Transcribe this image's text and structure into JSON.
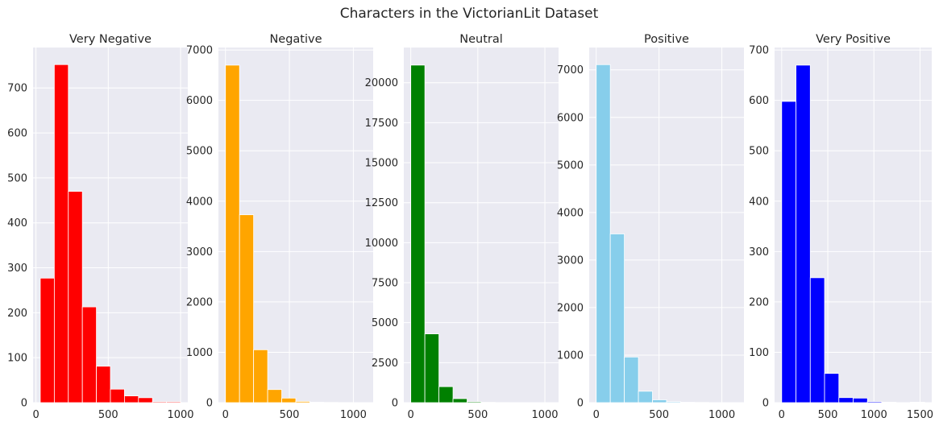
{
  "title": "Characters in the VictorianLit Dataset",
  "chart_data": [
    {
      "type": "bar",
      "title": "Very Negative",
      "color": "#ff0000",
      "bin_edges": [
        30,
        127,
        224,
        321,
        418,
        515,
        612,
        709,
        806,
        903,
        1000
      ],
      "counts": [
        277,
        752,
        470,
        213,
        81,
        30,
        15,
        11,
        2,
        2
      ],
      "xlim": [
        -20,
        1050
      ],
      "ylim": [
        0,
        790
      ],
      "xticks": [
        0,
        500,
        1000
      ],
      "yticks": [
        0,
        100,
        200,
        300,
        400,
        500,
        600,
        700
      ],
      "xtick_labels": [
        "0",
        "500",
        "1000"
      ],
      "ytick_labels": [
        "0",
        "100",
        "200",
        "300",
        "400",
        "500",
        "600",
        "700"
      ],
      "grid": true
    },
    {
      "type": "bar",
      "title": "Negative",
      "color": "#ffa500",
      "bin_edges": [
        0,
        110,
        220,
        330,
        440,
        550,
        660,
        770,
        880,
        990,
        1100
      ],
      "counts": [
        6700,
        3730,
        1050,
        260,
        90,
        25,
        8,
        4,
        2,
        1
      ],
      "xlim": [
        -55,
        1155
      ],
      "ylim": [
        0,
        7050
      ],
      "xticks": [
        0,
        500,
        1000
      ],
      "yticks": [
        0,
        1000,
        2000,
        3000,
        4000,
        5000,
        6000,
        7000
      ],
      "xtick_labels": [
        "0",
        "500",
        "1000"
      ],
      "ytick_labels": [
        "0",
        "1000",
        "2000",
        "3000",
        "4000",
        "5000",
        "6000",
        "7000"
      ],
      "grid": true
    },
    {
      "type": "bar",
      "title": "Neutral",
      "color": "#008000",
      "bin_edges": [
        0,
        105,
        210,
        315,
        420,
        525,
        630,
        735,
        840,
        945,
        1050
      ],
      "counts": [
        21100,
        4300,
        1000,
        250,
        60,
        20,
        8,
        4,
        2,
        1
      ],
      "xlim": [
        -52,
        1102
      ],
      "ylim": [
        0,
        22200
      ],
      "xticks": [
        0,
        500,
        1000
      ],
      "yticks": [
        0,
        2500,
        5000,
        7500,
        10000,
        12500,
        15000,
        17500,
        20000
      ],
      "xtick_labels": [
        "0",
        "500",
        "1000"
      ],
      "ytick_labels": [
        "0",
        "2500",
        "5000",
        "7500",
        "10000",
        "12500",
        "15000",
        "17500",
        "20000"
      ],
      "grid": true
    },
    {
      "type": "bar",
      "title": "Positive",
      "color": "#87ceeb",
      "bin_edges": [
        0,
        112,
        224,
        336,
        448,
        560,
        672,
        784,
        896,
        1008,
        1120
      ],
      "counts": [
        7110,
        3550,
        960,
        240,
        60,
        20,
        8,
        4,
        2,
        1
      ],
      "xlim": [
        -56,
        1176
      ],
      "ylim": [
        0,
        7470
      ],
      "xticks": [
        0,
        500,
        1000
      ],
      "yticks": [
        0,
        1000,
        2000,
        3000,
        4000,
        5000,
        6000,
        7000
      ],
      "xtick_labels": [
        "0",
        "500",
        "1000"
      ],
      "ytick_labels": [
        "0",
        "1000",
        "2000",
        "3000",
        "4000",
        "5000",
        "6000",
        "7000"
      ],
      "grid": true
    },
    {
      "type": "bar",
      "title": "Very Positive",
      "color": "#0000ff",
      "bin_edges": [
        0,
        155,
        310,
        465,
        620,
        775,
        930,
        1085,
        1240,
        1395,
        1550
      ],
      "counts": [
        598,
        670,
        248,
        58,
        10,
        9,
        2,
        1,
        0,
        1
      ],
      "xlim": [
        -77,
        1627
      ],
      "ylim": [
        0,
        705
      ],
      "xticks": [
        0,
        500,
        1000,
        1500
      ],
      "yticks": [
        0,
        100,
        200,
        300,
        400,
        500,
        600,
        700
      ],
      "xtick_labels": [
        "0",
        "500",
        "1000",
        "1500"
      ],
      "ytick_labels": [
        "0",
        "100",
        "200",
        "300",
        "400",
        "500",
        "600",
        "700"
      ],
      "grid": true
    }
  ]
}
